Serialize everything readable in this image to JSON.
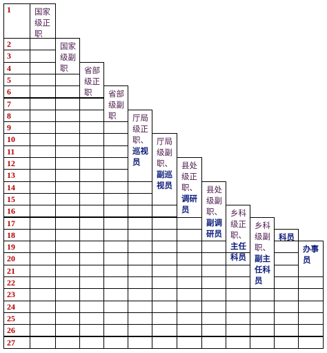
{
  "rows": [
    1,
    2,
    3,
    4,
    5,
    6,
    7,
    8,
    9,
    10,
    11,
    12,
    13,
    14,
    15,
    16,
    17,
    18,
    19,
    20,
    21,
    22,
    23,
    24,
    25,
    26,
    27
  ],
  "columns": [
    {
      "plain": "国家级正职"
    },
    {
      "plain": "国家级副职"
    },
    {
      "plain": "省部级正职"
    },
    {
      "plain": "省部级副职"
    },
    {
      "plain": "厅局级正职、",
      "bold": "巡视员"
    },
    {
      "plain": "厅局级副职、",
      "bold": "副巡视员"
    },
    {
      "plain": "县处级正职、",
      "bold": "调研员"
    },
    {
      "plain": "县处级副职、",
      "bold": "副调研员"
    },
    {
      "plain": "乡科级正职、",
      "bold": "主任科员"
    },
    {
      "plain": "乡科级副职、",
      "bold": "副主任科员"
    },
    {
      "bold": "科员"
    },
    {
      "bold": "办事员"
    }
  ]
}
